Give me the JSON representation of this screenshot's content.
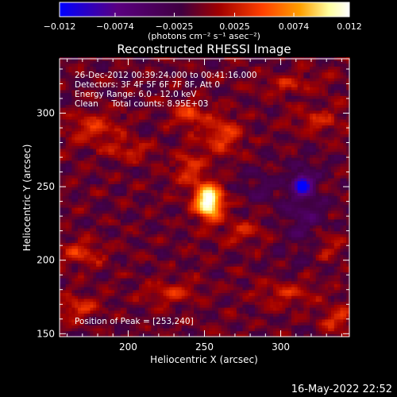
{
  "chart_data": {
    "type": "heatmap",
    "title": "Reconstructed RHESSI Image",
    "xlabel": "Heliocentric X (arcsec)",
    "ylabel": "Heliocentric Y (arcsec)",
    "xlim": [
      155,
      345
    ],
    "ylim": [
      148,
      337
    ],
    "xticks": [
      200,
      250,
      300
    ],
    "yticks": [
      150,
      200,
      250,
      300
    ],
    "colorbar": {
      "range": [
        -0.012,
        0.012
      ],
      "tick_labels": [
        "−0.012",
        "−0.0074",
        "−0.0025",
        "0.0025",
        "0.0074",
        "0.012"
      ],
      "tick_values": [
        -0.012,
        -0.0074,
        -0.0025,
        0.0025,
        0.0074,
        0.012
      ],
      "unit_label": "(photons cm⁻² s⁻¹ asec⁻²)",
      "colors": [
        "#0000ff",
        "#5a0080",
        "#400040",
        "#a00000",
        "#ff4000",
        "#ffa000",
        "#ffffa0",
        "#ffffff"
      ]
    },
    "annotation_lines": [
      "26-Dec-2012 00:39:24.000 to 00:41:16.000",
      "Detectors: 3F 4F 5F 6F 7F 8F, Att 0",
      "Energy Range: 6.0 - 12.0 keV",
      "Clean     Total counts: 8.95E+03"
    ],
    "peak_label": "Position of Peak = [253,240]",
    "peak": {
      "x": 253,
      "y": 240,
      "value": 0.012
    },
    "minimum": {
      "x": 314,
      "y": 252,
      "value": -0.012
    },
    "sources": [
      {
        "x": 253,
        "y": 240,
        "sx": 6,
        "sy": 8,
        "amp": 0.0145
      },
      {
        "x": 240,
        "y": 262,
        "sx": 7,
        "sy": 9,
        "amp": 0.0042
      },
      {
        "x": 262,
        "y": 285,
        "sx": 9,
        "sy": 9,
        "amp": 0.0045
      },
      {
        "x": 240,
        "y": 300,
        "sx": 9,
        "sy": 6,
        "amp": 0.0045
      },
      {
        "x": 178,
        "y": 290,
        "sx": 12,
        "sy": 7,
        "amp": 0.0038
      },
      {
        "x": 200,
        "y": 275,
        "sx": 10,
        "sy": 5,
        "amp": 0.0032
      },
      {
        "x": 170,
        "y": 205,
        "sx": 10,
        "sy": 6,
        "amp": 0.004
      },
      {
        "x": 168,
        "y": 168,
        "sx": 9,
        "sy": 5,
        "amp": 0.0045
      },
      {
        "x": 228,
        "y": 178,
        "sx": 12,
        "sy": 5,
        "amp": 0.0035
      },
      {
        "x": 305,
        "y": 178,
        "sx": 14,
        "sy": 6,
        "amp": 0.0032
      },
      {
        "x": 337,
        "y": 160,
        "sx": 8,
        "sy": 6,
        "amp": 0.004
      },
      {
        "x": 330,
        "y": 210,
        "sx": 7,
        "sy": 6,
        "amp": 0.003
      },
      {
        "x": 275,
        "y": 220,
        "sx": 9,
        "sy": 6,
        "amp": 0.003
      },
      {
        "x": 325,
        "y": 295,
        "sx": 12,
        "sy": 6,
        "amp": 0.0032
      },
      {
        "x": 305,
        "y": 320,
        "sx": 14,
        "sy": 5,
        "amp": 0.0028
      },
      {
        "x": 314,
        "y": 252,
        "sx": 4,
        "sy": 4,
        "amp": -0.011
      },
      {
        "x": 315,
        "y": 235,
        "sx": 10,
        "sy": 22,
        "amp": -0.003
      },
      {
        "x": 285,
        "y": 250,
        "sx": 8,
        "sy": 8,
        "amp": -0.002
      }
    ],
    "background": -0.0008,
    "grid": false
  },
  "footer_date": "16-May-2022 22:52"
}
